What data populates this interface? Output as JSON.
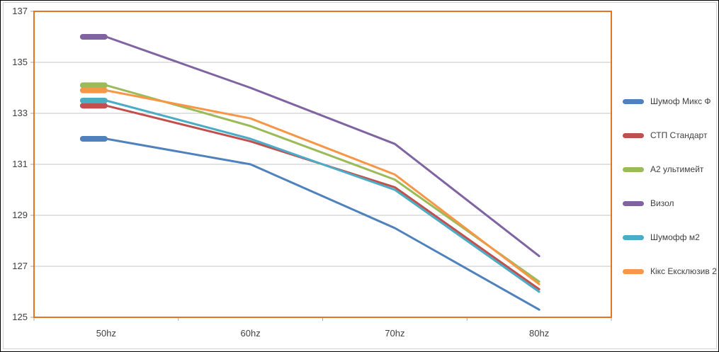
{
  "chart_data": {
    "type": "line",
    "title": "",
    "xlabel": "",
    "ylabel": "",
    "categories": [
      "50hz",
      "60hz",
      "70hz",
      "80hz"
    ],
    "series": [
      {
        "name": "Шумоф Микс Ф",
        "color": "#4F81BD",
        "values": [
          132.0,
          131.0,
          128.5,
          125.3
        ]
      },
      {
        "name": "СТП Стандарт",
        "color": "#C0504D",
        "values": [
          133.3,
          131.9,
          130.1,
          126.1
        ]
      },
      {
        "name": "А2 ультимейт",
        "color": "#9BBB59",
        "values": [
          134.1,
          132.5,
          130.4,
          126.4
        ]
      },
      {
        "name": "Визол",
        "color": "#8064A2",
        "values": [
          136.0,
          134.0,
          131.8,
          127.4
        ]
      },
      {
        "name": "Шумофф м2",
        "color": "#4BACC6",
        "values": [
          133.5,
          132.0,
          130.0,
          126.0
        ]
      },
      {
        "name": "Кікс Ексклюзив 2",
        "color": "#F79646",
        "values": [
          133.9,
          132.8,
          130.6,
          126.3
        ]
      }
    ],
    "ylim": [
      125,
      137
    ],
    "yticks": [
      137,
      135,
      133,
      131,
      129,
      127,
      125
    ],
    "grid": true,
    "legend_position": "right",
    "marker": "dash-at-first-point",
    "colors": {
      "plot_border": "#E2751F",
      "gridline": "#C6C6C6",
      "tick": "#A6A6A6",
      "axis_text": "#3F3F3F",
      "frame_border": "#D2D2D2"
    }
  }
}
